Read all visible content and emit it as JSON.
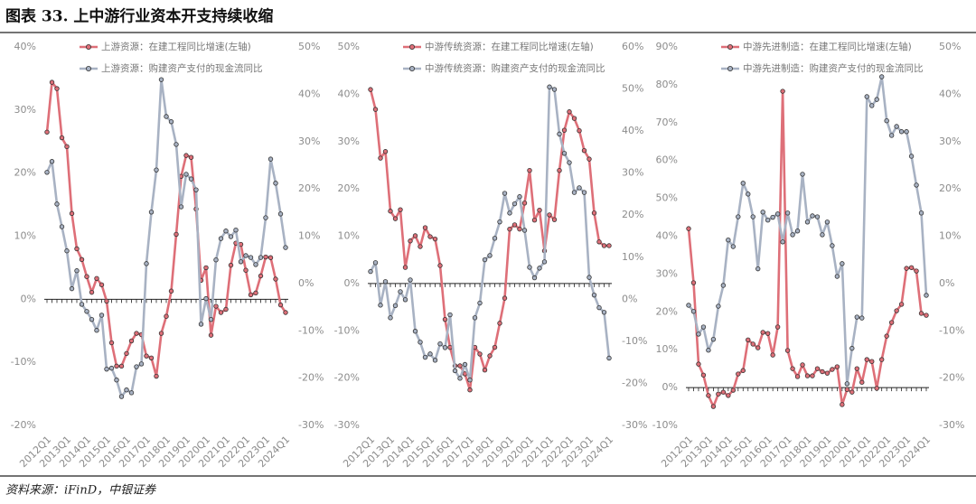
{
  "header": {
    "title": "图表 33. 上中游行业资本开支持续收缩"
  },
  "footer": {
    "source": "资料来源：iFinD，中银证券"
  },
  "chart_data": [
    {
      "type": "line",
      "categories": [
        "2012Q1",
        null,
        null,
        null,
        "2013Q1",
        null,
        null,
        null,
        "2014Q1",
        null,
        null,
        null,
        "2015Q1",
        null,
        null,
        null,
        "2016Q1",
        null,
        null,
        null,
        "2017Q1",
        null,
        null,
        null,
        "2018Q1",
        null,
        null,
        null,
        "2019Q1",
        null,
        null,
        null,
        "2020Q1",
        null,
        null,
        null,
        "2021Q1",
        null,
        null,
        null,
        "2022Q1",
        null,
        null,
        null,
        "2023Q1",
        null,
        null,
        null,
        "2024Q1"
      ],
      "series": [
        {
          "name": "上游资源：在建工程同比增速(左轴)",
          "color": "#de6f78",
          "values": [
            26.5,
            34.4,
            33.4,
            25.6,
            24.2,
            13.6,
            8,
            6.3,
            3.6,
            1.1,
            3.3,
            2.3,
            -0.3,
            -6.9,
            -10.6,
            -10.6,
            -8.6,
            -6.6,
            -5.4,
            -5.6,
            -9,
            -9.3,
            -12.2,
            -5.4,
            -2.7,
            1.3,
            10.3,
            19.5,
            22.8,
            22.5,
            14.3,
            3,
            5,
            -5.7,
            -1.1,
            -2.1,
            -1.6,
            5.4,
            8.9,
            8.7,
            4.6,
            0.7,
            1,
            3.7,
            6.7,
            6.6,
            3.2,
            -0.9,
            -2.1
          ]
        },
        {
          "name": "上游资源：购建资产支付的现金流同比",
          "color": "#a8b2c3",
          "axis": "y2",
          "values": [
            23.5,
            25.8,
            16.8,
            12,
            6.9,
            -1.1,
            2.7,
            -4.4,
            -5.9,
            -7.6,
            -9.9,
            -6.7,
            -18.1,
            -17.9,
            -20.4,
            -23.9,
            -22.5,
            -23.1,
            -17.6,
            -17,
            4.2,
            15.1,
            24,
            43.1,
            35.3,
            34.2,
            29.4,
            16.2,
            23.1,
            22.1,
            19.8,
            -8.6,
            -3.2,
            -7.6,
            5,
            9.5,
            11.1,
            9.9,
            11.3,
            4.6,
            5.9,
            5.5,
            4,
            5.5,
            13.9,
            26.3,
            21.2,
            14.7,
            7.6
          ]
        }
      ],
      "ylim": [
        -20,
        40
      ],
      "yticks": [
        {
          "value": -20,
          "label": "-20%"
        },
        {
          "value": -10,
          "label": "-10%"
        },
        {
          "value": 0,
          "label": "0%"
        },
        {
          "value": 10,
          "label": "10%"
        },
        {
          "value": 20,
          "label": "20%"
        },
        {
          "value": 30,
          "label": "30%"
        },
        {
          "value": 40,
          "label": "40%"
        }
      ],
      "y2lim": [
        -30,
        50
      ],
      "y2ticks": [
        {
          "value": -30,
          "label": "-30%"
        },
        {
          "value": -20,
          "label": "-20%"
        },
        {
          "value": -10,
          "label": "-10%"
        },
        {
          "value": 0,
          "label": "0%"
        },
        {
          "value": 10,
          "label": "10%"
        },
        {
          "value": 20,
          "label": "20%"
        },
        {
          "value": 30,
          "label": "30%"
        },
        {
          "value": 40,
          "label": "40%"
        },
        {
          "value": 50,
          "label": "50%"
        }
      ]
    },
    {
      "type": "line",
      "categories": [
        "2012Q1",
        null,
        null,
        null,
        "2013Q1",
        null,
        null,
        null,
        "2014Q1",
        null,
        null,
        null,
        "2015Q1",
        null,
        null,
        null,
        "2016Q1",
        null,
        null,
        null,
        "2017Q1",
        null,
        null,
        null,
        "2018Q1",
        null,
        null,
        null,
        "2019Q1",
        null,
        null,
        null,
        "2020Q1",
        null,
        null,
        null,
        "2021Q1",
        null,
        null,
        null,
        "2022Q1",
        null,
        null,
        null,
        "2023Q1",
        null,
        null,
        null,
        "2024Q1"
      ],
      "series": [
        {
          "name": "中游传统资源：在建工程同比增速(左轴)",
          "color": "#de6f78",
          "values": [
            41,
            36.8,
            26.5,
            27.9,
            15.3,
            13.7,
            15.6,
            3.4,
            9,
            10.1,
            7.8,
            11.8,
            9.9,
            9.4,
            3.8,
            -7.6,
            -13.5,
            -17.4,
            -17.4,
            -19.1,
            -22.5,
            -13.5,
            -14.9,
            -18.3,
            -15.3,
            -13.5,
            -8.4,
            -3.1,
            11.5,
            12.4,
            11.5,
            17,
            23.9,
            13.4,
            15.5,
            6.9,
            14.5,
            13.5,
            23.9,
            32.4,
            36.3,
            34.9,
            32.3,
            28.1,
            26.3,
            14.9,
            8.8,
            8,
            8
          ]
        },
        {
          "name": "中游传统资源：购建资产支付的现金流同比",
          "color": "#a8b2c3",
          "axis": "y2",
          "values": [
            6.6,
            8.7,
            -1.4,
            4.2,
            -4.4,
            -1.5,
            1.8,
            -0.1,
            4.6,
            -7.6,
            -10.2,
            -13.8,
            -13,
            -14.5,
            -10.6,
            -11.5,
            -3.7,
            -17,
            -18.8,
            -15.5,
            -19.2,
            -4.4,
            -0.9,
            9.4,
            10.4,
            14.5,
            18.4,
            25.2,
            20.5,
            22.7,
            24.4,
            16.4,
            7.6,
            5.1,
            7.4,
            8.9,
            50.5,
            49.9,
            39.3,
            34.7,
            32.5,
            25.4,
            26.5,
            25.4,
            5.2,
            1,
            -2,
            -3.1,
            -14
          ]
        }
      ],
      "ylim": [
        -30,
        50
      ],
      "yticks": [
        {
          "value": -30,
          "label": "-30%"
        },
        {
          "value": -20,
          "label": "-20%"
        },
        {
          "value": -10,
          "label": "-10%"
        },
        {
          "value": 0,
          "label": "0%"
        },
        {
          "value": 10,
          "label": "10%"
        },
        {
          "value": 20,
          "label": "20%"
        },
        {
          "value": 30,
          "label": "30%"
        },
        {
          "value": 40,
          "label": "40%"
        },
        {
          "value": 50,
          "label": "50%"
        }
      ],
      "y2lim": [
        -30,
        60
      ],
      "y2ticks": [
        {
          "value": -30,
          "label": "-30%"
        },
        {
          "value": -20,
          "label": "-20%"
        },
        {
          "value": -10,
          "label": "-10%"
        },
        {
          "value": 0,
          "label": "0%"
        },
        {
          "value": 10,
          "label": "10%"
        },
        {
          "value": 20,
          "label": "20%"
        },
        {
          "value": 30,
          "label": "30%"
        },
        {
          "value": 40,
          "label": "40%"
        },
        {
          "value": 50,
          "label": "50%"
        },
        {
          "value": 60,
          "label": "60%"
        }
      ]
    },
    {
      "type": "line",
      "categories": [
        "2012Q1",
        null,
        null,
        null,
        "2013Q1",
        null,
        null,
        null,
        "2014Q1",
        null,
        null,
        null,
        "2015Q1",
        null,
        null,
        null,
        "2016Q1",
        null,
        null,
        null,
        "2017Q1",
        null,
        null,
        null,
        "2018Q1",
        null,
        null,
        null,
        "2019Q1",
        null,
        null,
        null,
        "2020Q1",
        null,
        null,
        null,
        "2021Q1",
        null,
        null,
        null,
        "2022Q1",
        null,
        null,
        null,
        "2023Q1",
        null,
        null,
        null,
        "2024Q1"
      ],
      "series": [
        {
          "name": "中游先进制造：在建工程同比增速(左轴)",
          "color": "#de6f78",
          "values": [
            42,
            27.7,
            6.2,
            3.3,
            -2.1,
            -5,
            -1.7,
            -1.2,
            -2.1,
            -0.7,
            3.6,
            4.5,
            12.6,
            11.5,
            10.5,
            14.6,
            14.3,
            8.6,
            16,
            78.3,
            9.8,
            5,
            2.9,
            6,
            3.1,
            3.1,
            5,
            4.2,
            3.8,
            4.8,
            5.5,
            -4.5,
            -0.5,
            -1.2,
            5,
            1.4,
            7.4,
            6.9,
            -0.2,
            7.4,
            13.6,
            17.2,
            20.3,
            22,
            31.5,
            31.7,
            30.8,
            19.6,
            19.1
          ]
        },
        {
          "name": "中游先进制造：购建资产支付的现金流同比",
          "color": "#a8b2c3",
          "axis": "y2",
          "values": [
            -4.6,
            -5.9,
            -10.7,
            -9.2,
            -14.1,
            -11.8,
            -4.8,
            -0.4,
            9.2,
            7.8,
            14.1,
            21.2,
            18.9,
            14.1,
            3.1,
            15.1,
            13.4,
            14,
            14.7,
            8.8,
            14.9,
            10.3,
            11.1,
            23.1,
            13,
            14.3,
            14.1,
            10.3,
            13,
            8,
            1.5,
            4.2,
            -21.2,
            -13.7,
            -7.1,
            -7.3,
            39.5,
            37.6,
            38.9,
            43.7,
            34.4,
            31.3,
            33.2,
            32.1,
            32.1,
            26.9,
            20.8,
            14.9,
            -2.5
          ]
        }
      ],
      "ylim": [
        -10,
        90
      ],
      "yticks": [
        {
          "value": -10,
          "label": "-10%"
        },
        {
          "value": 0,
          "label": "0%"
        },
        {
          "value": 10,
          "label": "10%"
        },
        {
          "value": 20,
          "label": "20%"
        },
        {
          "value": 30,
          "label": "30%"
        },
        {
          "value": 40,
          "label": "40%"
        },
        {
          "value": 50,
          "label": "50%"
        },
        {
          "value": 60,
          "label": "60%"
        },
        {
          "value": 70,
          "label": "70%"
        },
        {
          "value": 80,
          "label": "80%"
        },
        {
          "value": 90,
          "label": "90%"
        }
      ],
      "y2lim": [
        -30,
        50
      ],
      "y2ticks": [
        {
          "value": -30,
          "label": "-30%"
        },
        {
          "value": -20,
          "label": "-20%"
        },
        {
          "value": -10,
          "label": "-10%"
        },
        {
          "value": 0,
          "label": "0%"
        },
        {
          "value": 10,
          "label": "10%"
        },
        {
          "value": 20,
          "label": "20%"
        },
        {
          "value": 30,
          "label": "30%"
        },
        {
          "value": 40,
          "label": "40%"
        },
        {
          "value": 50,
          "label": "50%"
        }
      ]
    }
  ]
}
